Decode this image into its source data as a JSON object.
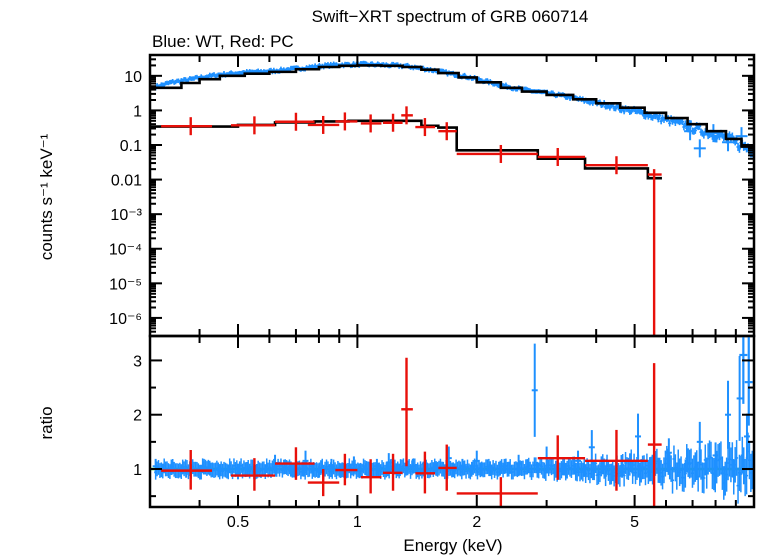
{
  "chart_data": [
    {
      "type": "scatter",
      "panel": "spectrum",
      "title": "Swift−XRT spectrum of GRB 060714",
      "subtitle": "Blue: WT, Red: PC",
      "xlabel": "Energy (keV)",
      "ylabel": "counts s⁻¹ keV⁻¹",
      "xscale": "log",
      "yscale": "log",
      "xlim": [
        0.3,
        10
      ],
      "ylim": [
        3e-07,
        40
      ],
      "x_ticks": [
        {
          "value": 0.5,
          "label": "0.5"
        },
        {
          "value": 1,
          "label": "1"
        },
        {
          "value": 2,
          "label": "2"
        },
        {
          "value": 5,
          "label": "5"
        }
      ],
      "y_ticks": [
        {
          "value": 10,
          "label": "10"
        },
        {
          "value": 1,
          "label": "1"
        },
        {
          "value": 0.1,
          "label": "0.1"
        },
        {
          "value": 0.01,
          "label": "0.01"
        },
        {
          "value": 0.001,
          "label": "10⁻³"
        },
        {
          "value": 0.0001,
          "label": "10⁻⁴"
        },
        {
          "value": 1e-05,
          "label": "10⁻⁵"
        },
        {
          "value": 1e-06,
          "label": "10⁻⁶"
        }
      ],
      "series": [
        {
          "name": "WT",
          "color": "#1e90ff",
          "points": [
            [
              0.31,
              4.8
            ],
            [
              0.34,
              6.5
            ],
            [
              0.37,
              7.5
            ],
            [
              0.4,
              8.8
            ],
            [
              0.44,
              10.5
            ],
            [
              0.48,
              11.5
            ],
            [
              0.52,
              12.5
            ],
            [
              0.57,
              13.0
            ],
            [
              0.62,
              14.0
            ],
            [
              0.68,
              15.5
            ],
            [
              0.74,
              17.0
            ],
            [
              0.8,
              19.0
            ],
            [
              0.87,
              20.5
            ],
            [
              0.95,
              21.0
            ],
            [
              1.03,
              21.5
            ],
            [
              1.12,
              21.0
            ],
            [
              1.22,
              20.0
            ],
            [
              1.33,
              19.0
            ],
            [
              1.45,
              16.5
            ],
            [
              1.58,
              14.0
            ],
            [
              1.72,
              11.5
            ],
            [
              1.88,
              9.5
            ],
            [
              2.05,
              7.5
            ],
            [
              2.24,
              5.8
            ],
            [
              2.45,
              4.6
            ],
            [
              2.68,
              3.8
            ],
            [
              2.93,
              3.3
            ],
            [
              3.2,
              2.8
            ],
            [
              3.5,
              2.3
            ],
            [
              3.83,
              1.8
            ],
            [
              4.18,
              1.5
            ],
            [
              4.57,
              1.15
            ],
            [
              5.0,
              0.95
            ],
            [
              5.45,
              0.72
            ],
            [
              5.95,
              0.55
            ],
            [
              6.5,
              0.42
            ],
            [
              7.1,
              0.3
            ],
            [
              7.76,
              0.22
            ],
            [
              8.48,
              0.16
            ],
            [
              9.27,
              0.1
            ],
            [
              9.8,
              0.08
            ]
          ]
        },
        {
          "name": "PC",
          "color": "#e8100a",
          "points": [
            [
              0.38,
              0.35,
              0.32,
              0.43
            ],
            [
              0.55,
              0.37,
              0.48,
              0.62
            ],
            [
              0.7,
              0.47,
              0.62,
              0.78
            ],
            [
              0.82,
              0.38,
              0.75,
              0.9
            ],
            [
              0.93,
              0.48,
              0.88,
              1.0
            ],
            [
              1.08,
              0.42,
              1.02,
              1.15
            ],
            [
              1.23,
              0.44,
              1.16,
              1.3
            ],
            [
              1.33,
              0.72,
              1.29,
              1.38
            ],
            [
              1.48,
              0.33,
              1.4,
              1.57
            ],
            [
              1.68,
              0.25,
              1.6,
              1.78
            ],
            [
              2.3,
              0.055,
              1.78,
              2.85
            ],
            [
              3.2,
              0.045,
              2.85,
              3.75
            ],
            [
              4.5,
              0.026,
              3.75,
              5.4
            ],
            [
              5.6,
              0.014,
              5.4,
              5.85
            ]
          ]
        }
      ],
      "model": [
        {
          "name": "WT model",
          "color": "#000000",
          "steps": [
            [
              0.3,
              4.5
            ],
            [
              0.36,
              6.2
            ],
            [
              0.4,
              8.0
            ],
            [
              0.45,
              10.0
            ],
            [
              0.52,
              11.5
            ],
            [
              0.6,
              13.0
            ],
            [
              0.7,
              15.5
            ],
            [
              0.8,
              18.0
            ],
            [
              0.9,
              19.5
            ],
            [
              1.0,
              20.0
            ],
            [
              1.15,
              19.5
            ],
            [
              1.3,
              18.0
            ],
            [
              1.45,
              15.0
            ],
            [
              1.6,
              12.0
            ],
            [
              1.8,
              9.0
            ],
            [
              2.0,
              6.5
            ],
            [
              2.3,
              4.5
            ],
            [
              2.6,
              3.5
            ],
            [
              3.0,
              2.8
            ],
            [
              3.5,
              2.1
            ],
            [
              4.0,
              1.6
            ],
            [
              4.6,
              1.2
            ],
            [
              5.3,
              0.85
            ],
            [
              6.0,
              0.6
            ],
            [
              6.8,
              0.4
            ],
            [
              7.6,
              0.25
            ],
            [
              8.5,
              0.15
            ],
            [
              9.3,
              0.09
            ],
            [
              10.0,
              0.06
            ]
          ]
        },
        {
          "name": "PC model",
          "color": "#000000",
          "steps": [
            [
              0.3,
              0.34
            ],
            [
              0.5,
              0.38
            ],
            [
              0.62,
              0.45
            ],
            [
              0.78,
              0.48
            ],
            [
              0.95,
              0.5
            ],
            [
              1.45,
              0.36
            ],
            [
              1.6,
              0.32
            ],
            [
              1.78,
              0.07
            ],
            [
              2.85,
              0.04
            ],
            [
              3.75,
              0.021
            ],
            [
              5.4,
              0.011
            ],
            [
              5.85,
              0.011
            ]
          ]
        }
      ]
    },
    {
      "type": "scatter",
      "panel": "ratio",
      "ylabel": "ratio",
      "xlabel": "Energy (keV)",
      "xscale": "log",
      "xlim": [
        0.3,
        10
      ],
      "ylim": [
        0.3,
        3.45
      ],
      "y_ticks": [
        {
          "value": 1,
          "label": "1"
        },
        {
          "value": 2,
          "label": "2"
        },
        {
          "value": 3,
          "label": "3"
        }
      ],
      "reference_line": {
        "value": 1.0,
        "color": "#22dd22"
      },
      "series": [
        {
          "name": "WT",
          "color": "#1e90ff",
          "points": [
            [
              0.31,
              1.05
            ],
            [
              0.34,
              1.0
            ],
            [
              0.37,
              0.95
            ],
            [
              0.41,
              1.02
            ],
            [
              0.45,
              0.98
            ],
            [
              0.5,
              0.92
            ],
            [
              0.56,
              0.95
            ],
            [
              0.62,
              1.1
            ],
            [
              0.68,
              0.97
            ],
            [
              0.74,
              1.15
            ],
            [
              0.8,
              0.95
            ],
            [
              0.86,
              1.05
            ],
            [
              0.92,
              1.0
            ],
            [
              0.98,
              1.08
            ],
            [
              1.05,
              1.0
            ],
            [
              1.12,
              1.05
            ],
            [
              1.2,
              1.12
            ],
            [
              1.28,
              0.98
            ],
            [
              1.38,
              1.05
            ],
            [
              1.48,
              1.1
            ],
            [
              1.58,
              1.0
            ],
            [
              1.7,
              1.2
            ],
            [
              1.84,
              1.05
            ],
            [
              2.0,
              1.15
            ],
            [
              2.15,
              0.98
            ],
            [
              2.35,
              1.05
            ],
            [
              2.55,
              1.1
            ],
            [
              2.8,
              2.45
            ],
            [
              3.0,
              1.2
            ],
            [
              3.3,
              1.0
            ],
            [
              3.6,
              1.15
            ],
            [
              3.9,
              1.4
            ],
            [
              4.25,
              1.05
            ],
            [
              4.65,
              0.95
            ],
            [
              5.1,
              1.6
            ],
            [
              5.55,
              1.1
            ],
            [
              6.1,
              1.3
            ],
            [
              6.7,
              1.0
            ],
            [
              7.3,
              1.5
            ],
            [
              8.0,
              1.25
            ],
            [
              8.6,
              2.0
            ],
            [
              9.2,
              2.3
            ],
            [
              9.6,
              1.6
            ]
          ]
        },
        {
          "name": "PC",
          "color": "#e8100a",
          "points": [
            [
              0.38,
              0.97,
              0.32,
              0.43,
              0.62,
              1.35
            ],
            [
              0.55,
              0.88,
              0.48,
              0.62,
              0.6,
              1.2
            ],
            [
              0.7,
              1.1,
              0.62,
              0.78,
              0.8,
              1.4
            ],
            [
              0.82,
              0.75,
              0.75,
              0.9,
              0.5,
              1.0
            ],
            [
              0.93,
              0.98,
              0.88,
              1.0,
              0.7,
              1.28
            ],
            [
              1.08,
              0.85,
              1.02,
              1.15,
              0.55,
              1.18
            ],
            [
              1.23,
              0.93,
              1.16,
              1.3,
              0.6,
              1.28
            ],
            [
              1.33,
              2.1,
              1.29,
              1.38,
              1.05,
              3.05
            ],
            [
              1.48,
              0.92,
              1.4,
              1.57,
              0.55,
              1.32
            ],
            [
              1.68,
              1.02,
              1.6,
              1.78,
              0.6,
              1.45
            ],
            [
              2.3,
              0.55,
              1.78,
              2.85,
              0.3,
              0.85
            ],
            [
              3.2,
              1.2,
              2.85,
              3.75,
              0.8,
              1.62
            ],
            [
              4.5,
              1.15,
              3.75,
              5.4,
              0.6,
              1.72
            ],
            [
              5.6,
              1.45,
              5.4,
              5.85,
              0.3,
              2.95
            ]
          ]
        }
      ]
    }
  ]
}
